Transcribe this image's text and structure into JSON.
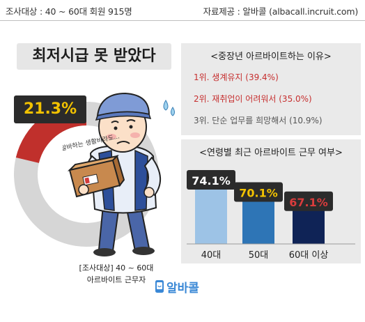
{
  "header": {
    "survey": "조사대상 : 40 ~ 60대 회원 915명",
    "source": "자료제공 : 알바콜 (albacall.incruit.com)"
  },
  "headline": "최저시급 못 받았다",
  "donut": {
    "percent_label": "21.3%",
    "value": 21.3,
    "color_highlight": "#c0302c",
    "color_rest": "#d6d6d6"
  },
  "character": {
    "speech": "알바하는 생활비라도..."
  },
  "survey_note": {
    "line1": "[조사대상] 40 ~ 60대",
    "line2": "아르바이트 근무자"
  },
  "logo": {
    "text": "알바콜",
    "icon": "smartphone-smile-icon",
    "color": "#3a88d6"
  },
  "reasons": {
    "title": "<중장년 아르바이트하는 이유>",
    "items": [
      "1위. 생계유지 (39.4%)",
      "2위. 재취업이 어려워서 (35.0%)",
      "3위. 단순 업무를 희망해서 (10.9%)"
    ]
  },
  "chart_data": {
    "type": "bar",
    "title": "<연령별 최근 아르바이트 근무 여부>",
    "categories": [
      "40대",
      "50대",
      "60대 이상"
    ],
    "values": [
      74.1,
      70.1,
      67.1
    ],
    "value_labels": [
      "74.1%",
      "70.1%",
      "67.1%"
    ],
    "colors": [
      "#9dc3e6",
      "#2e75b6",
      "#0f2356"
    ],
    "label_colors": [
      "#ffffff",
      "#f2c200",
      "#d93c3c"
    ],
    "ylim": [
      0,
      100
    ],
    "grid": false
  }
}
